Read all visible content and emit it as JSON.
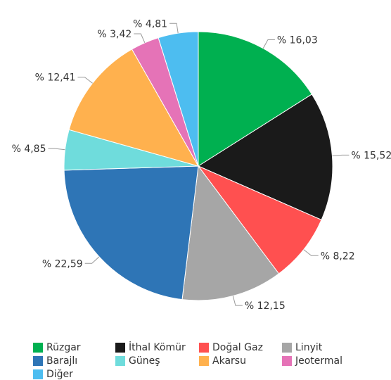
{
  "chart_data": {
    "type": "pie",
    "start_angle_deg": 0,
    "direction": "clockwise",
    "slices": [
      {
        "name": "Rüzgar",
        "value": 16.03,
        "label": "% 16,03",
        "color": "#00b050"
      },
      {
        "name": "İthal Kömür",
        "value": 15.52,
        "label": "% 15,52",
        "color": "#1a1a1a"
      },
      {
        "name": "Doğal Gaz",
        "value": 8.22,
        "label": "% 8,22",
        "color": "#ff5050"
      },
      {
        "name": "Linyit",
        "value": 12.15,
        "label": "% 12,15",
        "color": "#a6a6a6"
      },
      {
        "name": "Barajlı",
        "value": 22.59,
        "label": "% 22,59",
        "color": "#2e75b6"
      },
      {
        "name": "Güneş",
        "value": 4.85,
        "label": "% 4,85",
        "color": "#6fdcdc"
      },
      {
        "name": "Akarsu",
        "value": 12.41,
        "label": "% 12,41",
        "color": "#ffb14e"
      },
      {
        "name": "Jeotermal",
        "value": 3.42,
        "label": "% 3,42",
        "color": "#e573b7"
      },
      {
        "name": "Diğer",
        "value": 4.81,
        "label": "% 4,81",
        "color": "#4dbdf0"
      }
    ],
    "legend_order": [
      "Rüzgar",
      "İthal Kömür",
      "Doğal Gaz",
      "Linyit",
      "Barajlı",
      "Güneş",
      "Akarsu",
      "Jeotermal",
      "Diğer"
    ],
    "legend_position": "bottom"
  }
}
